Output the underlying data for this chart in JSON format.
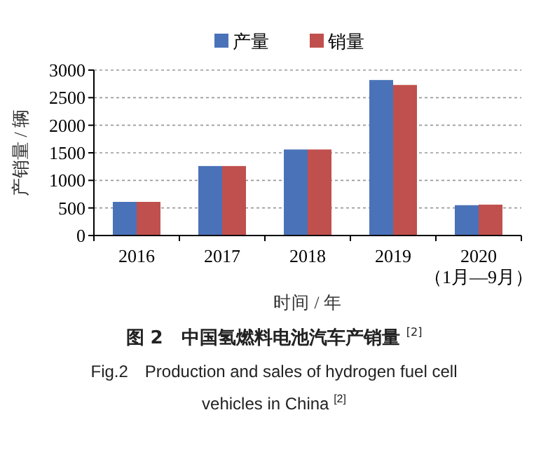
{
  "chart_data": {
    "type": "bar",
    "title": "图 2　中国氢燃料电池汽车产销量 $^{[2]}$",
    "subtitle": "Fig.2　Production and sales of hydrogen fuel cell vehicles in China $^{[2]}$",
    "xlabel": "时间 / 年",
    "ylabel": "产销量 / 辆",
    "categories": [
      "2016",
      "2017",
      "2018",
      "2019",
      "2020\n（1月—9月）"
    ],
    "series": [
      {
        "name": "产量",
        "color": "#4a72b8",
        "values": [
          610,
          1260,
          1560,
          2820,
          550
        ]
      },
      {
        "name": "销量",
        "color": "#c0504d",
        "values": [
          610,
          1260,
          1560,
          2730,
          560
        ]
      }
    ],
    "ylim": [
      0,
      3000
    ],
    "yticks": [
      0,
      500,
      1000,
      1500,
      2000,
      2500,
      3000
    ],
    "grid": "y",
    "legend": "top"
  }
}
